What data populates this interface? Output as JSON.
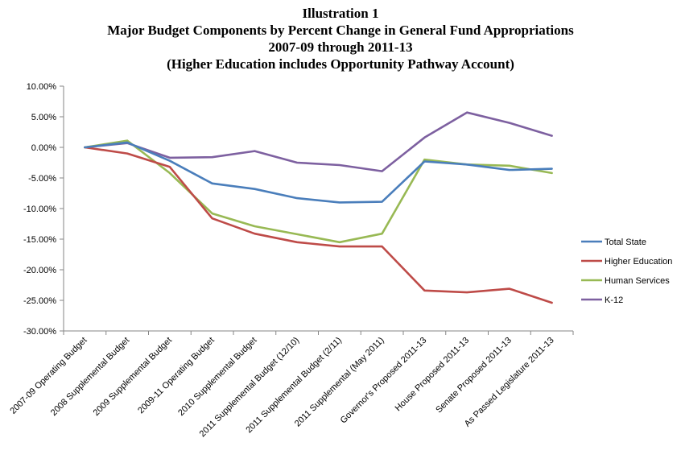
{
  "chart_data": {
    "type": "line",
    "title_lines": [
      "Illustration 1",
      "Major Budget Components by Percent Change in General Fund Appropriations",
      "2007-09 through 2011-13",
      "(Higher Education includes Opportunity Pathway Account)"
    ],
    "xlabel": "",
    "ylabel": "",
    "ylim": [
      -30,
      10
    ],
    "y_tick_labels": [
      "10.00%",
      "5.00%",
      "0.00%",
      "-5.00%",
      "-10.00%",
      "-15.00%",
      "-20.00%",
      "-25.00%",
      "-30.00%"
    ],
    "y_tick_values": [
      10,
      5,
      0,
      -5,
      -10,
      -15,
      -20,
      -25,
      -30
    ],
    "grid": false,
    "legend_position": "right",
    "categories": [
      "2007-09 Operating Budget",
      "2008 Supplemental Budget",
      "2009 Supplemental Budget",
      "2009-11 Operating Budget",
      "2010 Supplemental Budget",
      "2011 Supplemental Budget (12/10)",
      "2011 Supplemental Budget (2/11)",
      "2011 Supplemental (May 2011)",
      "Governor's Proposed 2011-13",
      "House Proposed 2011-13",
      "Senate Proposed 2011-13",
      "As Passed Legislature 2011-13"
    ],
    "series": [
      {
        "name": "Total State",
        "color": "#4a7ebb",
        "values": [
          0,
          0.8,
          -2.2,
          -5.9,
          -6.8,
          -8.3,
          -9.0,
          -8.9,
          -2.3,
          -2.8,
          -3.7,
          -3.5
        ]
      },
      {
        "name": "Higher Education",
        "color": "#be4b48",
        "values": [
          0,
          -1.0,
          -3.2,
          -11.6,
          -14.1,
          -15.5,
          -16.2,
          -16.2,
          -23.4,
          -23.7,
          -23.1,
          -25.4
        ]
      },
      {
        "name": "Human Services",
        "color": "#98b954",
        "values": [
          0,
          1.1,
          -4.2,
          -10.8,
          -12.9,
          -14.2,
          -15.5,
          -14.1,
          -2.0,
          -2.8,
          -3.0,
          -4.2
        ]
      },
      {
        "name": "K-12",
        "color": "#7d60a0",
        "values": [
          0,
          0.7,
          -1.7,
          -1.6,
          -0.6,
          -2.5,
          -2.9,
          -3.9,
          1.6,
          5.7,
          4.0,
          1.9
        ]
      }
    ],
    "axis_color": "#868686"
  }
}
